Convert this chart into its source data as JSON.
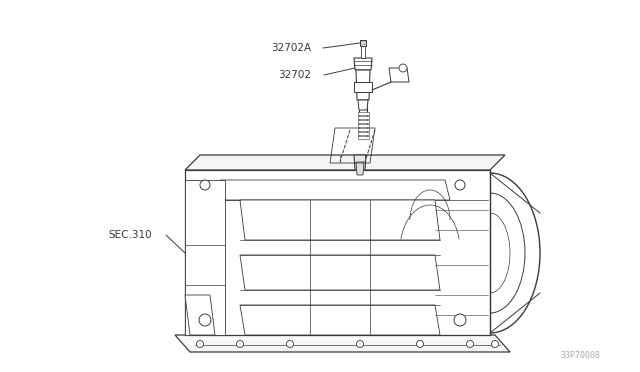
{
  "bg_color": "#ffffff",
  "line_color": "#3a3a3a",
  "label_color": "#3a3a3a",
  "label_32702A": "32702A",
  "label_32702": "32702",
  "label_SEC310": "SEC.310",
  "watermark": "33P70008",
  "fig_width": 6.4,
  "fig_height": 3.72,
  "dpi": 100
}
